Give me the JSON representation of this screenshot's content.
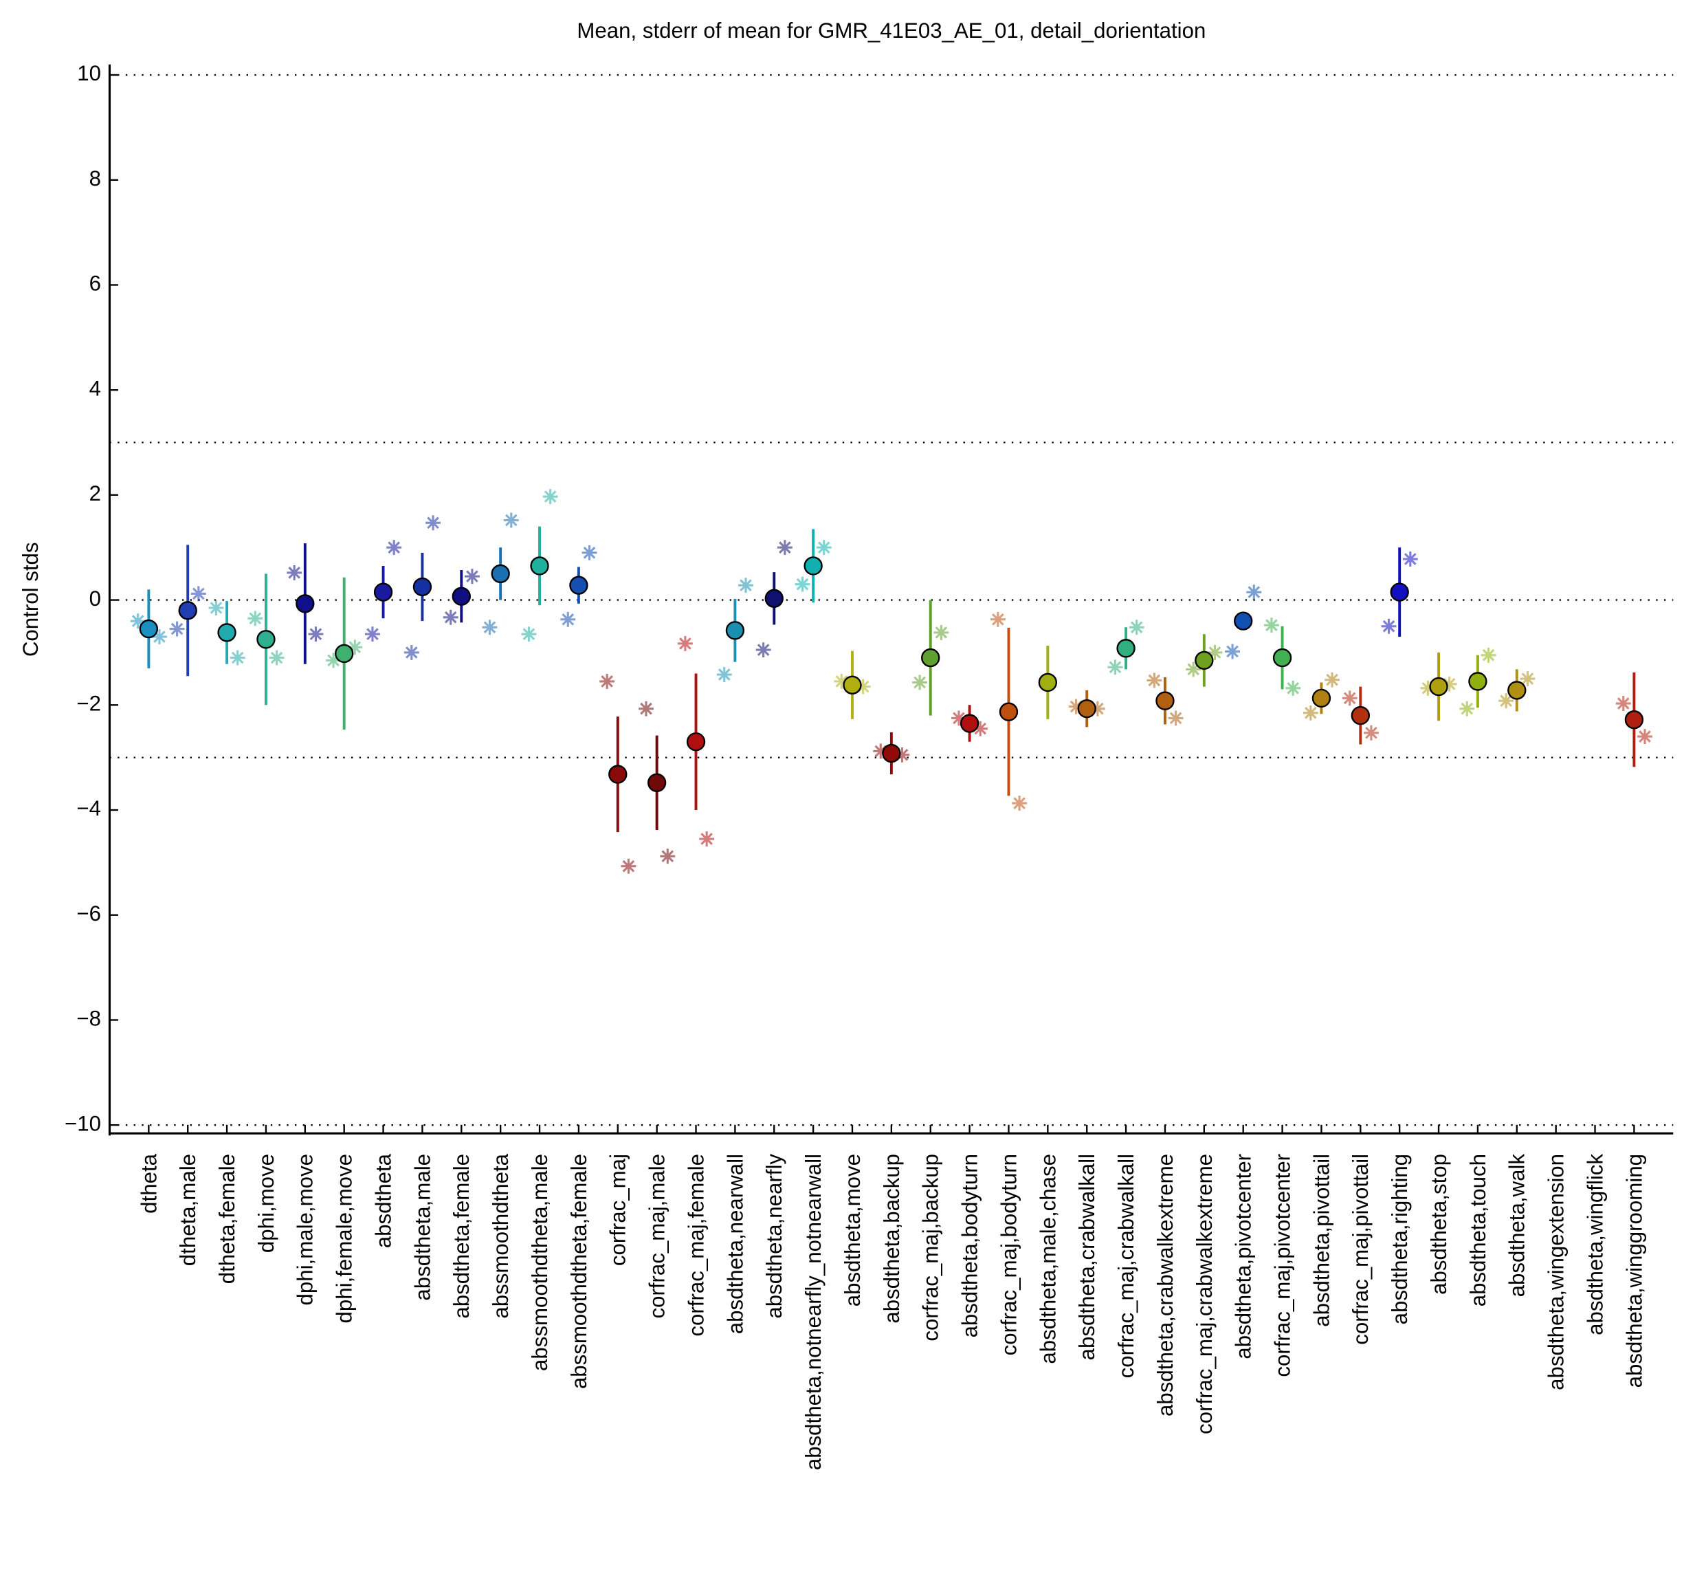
{
  "chart_data": {
    "type": "errorbar",
    "title": "Mean, stderr of mean for GMR_41E03_AE_01, detail_dorientation",
    "y_label": "Control stds",
    "xlim": [
      0,
      40
    ],
    "ylim": [
      -10.2,
      10.2
    ],
    "yticks": [
      {
        "value": -10,
        "label": "−10"
      },
      {
        "value": -8,
        "label": "−8"
      },
      {
        "value": -6,
        "label": "−6"
      },
      {
        "value": -4,
        "label": "−4"
      },
      {
        "value": -2,
        "label": "−2"
      },
      0,
      2,
      4,
      6,
      8,
      10
    ],
    "hlines": [
      -10,
      -3,
      0,
      3,
      10
    ],
    "categories": [
      "dtheta",
      "dtheta,male",
      "dtheta,female",
      "dphi,move",
      "dphi,male,move",
      "dphi,female,move",
      "absdtheta",
      "absdtheta,male",
      "absdtheta,female",
      "abssmoothdtheta",
      "abssmoothdtheta,male",
      "abssmoothdtheta,female",
      "corfrac_maj",
      "corfrac_maj,male",
      "corfrac_maj,female",
      "absdtheta,nearwall",
      "absdtheta,nearfly",
      "absdtheta,notnearfly_notnearwall",
      "absdtheta,move",
      "absdtheta,backup",
      "corfrac_maj,backup",
      "absdtheta,bodyturn",
      "corfrac_maj,bodyturn",
      "absdtheta,male,chase",
      "absdtheta,crabwalkall",
      "corfrac_maj,crabwalkall",
      "absdtheta,crabwalkextreme",
      "corfrac_maj,crabwalkextreme",
      "absdtheta,pivotcenter",
      "corfrac_maj,pivotcenter",
      "absdtheta,pivottail",
      "corfrac_maj,pivottail",
      "absdtheta,righting",
      "absdtheta,stop",
      "absdtheta,touch",
      "absdtheta,walk",
      "absdtheta,wingextension",
      "absdtheta,wingflick",
      "absdtheta,winggrooming"
    ],
    "colors": [
      "#1a8fc0",
      "#1f3fb0",
      "#22aab0",
      "#30b090",
      "#10108a",
      "#40b070",
      "#1a1aa0",
      "#1530a0",
      "#101080",
      "#1a70b0",
      "#20b0a0",
      "#1550b0",
      "#8a0a0a",
      "#700a0a",
      "#b01010",
      "#1a90b0",
      "#101070",
      "#10b0b0",
      "#b0b010",
      "#900a0a",
      "#60a030",
      "#b01010",
      "#c05010",
      "#a0b010",
      "#b06010",
      "#30b080",
      "#b06010",
      "#70a020",
      "#1050b0",
      "#40b050",
      "#b08010",
      "#b03010",
      "#1010c0",
      "#b0a010",
      "#90b010",
      "#b09010",
      "#999999",
      "#999999",
      "#b02010"
    ],
    "mean": [
      -0.55,
      -0.2,
      -0.62,
      -0.75,
      -0.07,
      -1.02,
      0.15,
      0.25,
      0.07,
      0.5,
      0.65,
      0.28,
      -3.32,
      -3.48,
      -2.7,
      -0.58,
      0.03,
      0.65,
      -1.62,
      -2.92,
      -1.1,
      -2.35,
      -2.13,
      -1.57,
      -2.07,
      -0.92,
      -1.92,
      -1.15,
      -0.4,
      -1.1,
      -1.87,
      -2.2,
      0.15,
      -1.65,
      -1.55,
      -1.72,
      null,
      null,
      -2.28
    ],
    "err": [
      0.75,
      1.25,
      0.6,
      1.25,
      1.15,
      1.45,
      0.5,
      0.65,
      0.5,
      0.5,
      0.75,
      0.35,
      1.1,
      0.9,
      1.3,
      0.6,
      0.5,
      0.7,
      0.65,
      0.4,
      1.1,
      0.35,
      1.6,
      0.7,
      0.35,
      0.4,
      0.45,
      0.5,
      0,
      0.6,
      0.3,
      0.55,
      0.85,
      0.65,
      0.5,
      0.4,
      null,
      null,
      0.9
    ],
    "star_left": [
      -0.4,
      -0.55,
      -0.15,
      -0.35,
      0.52,
      -1.15,
      -0.65,
      -1.0,
      -0.33,
      -0.52,
      -0.65,
      -0.37,
      -1.55,
      -2.07,
      -0.83,
      -1.42,
      -0.95,
      0.3,
      -1.55,
      -2.88,
      -1.57,
      -2.25,
      -0.37,
      null,
      -2.03,
      -1.28,
      -1.53,
      -1.32,
      -0.98,
      -0.48,
      -2.15,
      -1.87,
      -0.5,
      -1.68,
      -2.07,
      -1.92,
      null,
      null,
      -1.97
    ],
    "star_right": [
      -0.7,
      0.12,
      -1.1,
      -1.1,
      -0.65,
      -0.9,
      1.0,
      1.47,
      0.45,
      1.52,
      1.97,
      0.9,
      -5.07,
      -4.88,
      -4.55,
      0.28,
      1.0,
      1.0,
      -1.65,
      -2.95,
      -0.62,
      -2.45,
      -3.87,
      null,
      -2.07,
      -0.52,
      -2.25,
      -1.0,
      0.15,
      -1.68,
      -1.52,
      -2.53,
      0.78,
      -1.6,
      -1.05,
      -1.5,
      null,
      null,
      -2.6
    ]
  }
}
